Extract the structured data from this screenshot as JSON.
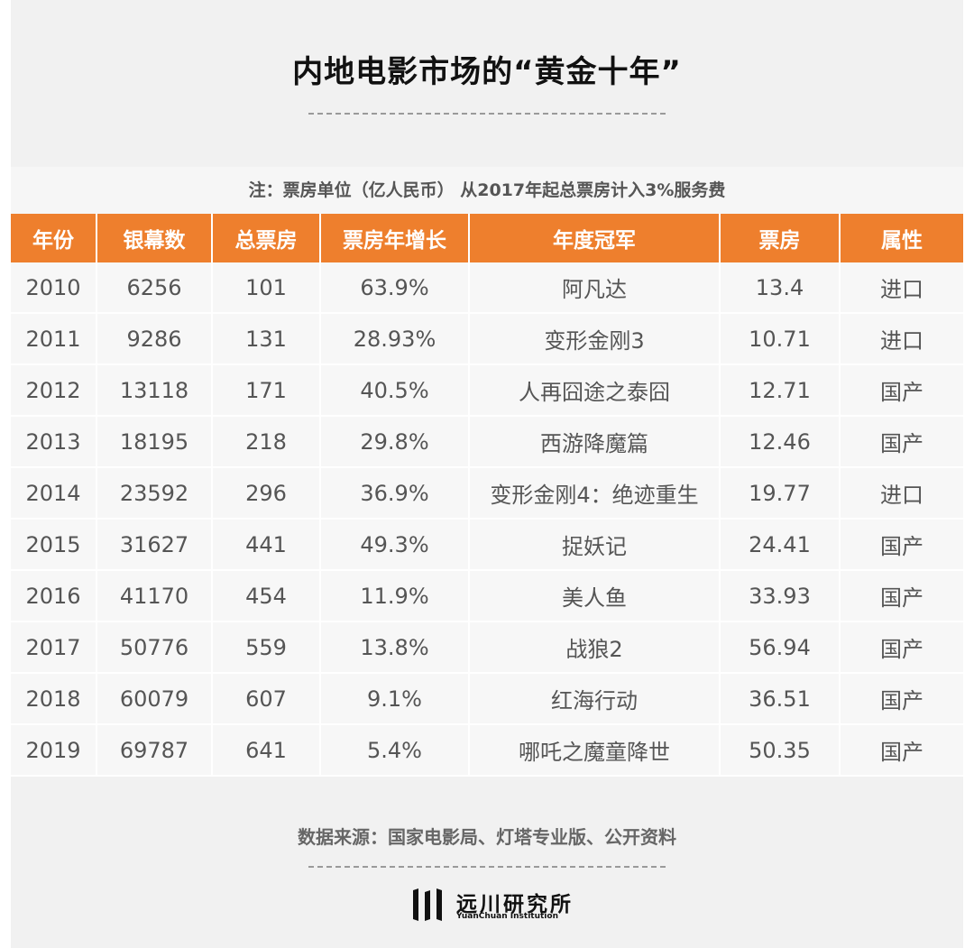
{
  "title": "内地电影市场的“黄金十年”",
  "note": "注：票房单位（亿人民币） 从2017年起总票房计入3%服务费",
  "table": {
    "headers": [
      "年份",
      "银幕数",
      "总票房",
      "票房年增长",
      "年度冠军",
      "票房",
      "属性"
    ],
    "rows": [
      [
        "2010",
        "6256",
        "101",
        "63.9%",
        "阿凡达",
        "13.4",
        "进口"
      ],
      [
        "2011",
        "9286",
        "131",
        "28.93%",
        "变形金刚3",
        "10.71",
        "进口"
      ],
      [
        "2012",
        "13118",
        "171",
        "40.5%",
        "人再囧途之泰囧",
        "12.71",
        "国产"
      ],
      [
        "2013",
        "18195",
        "218",
        "29.8%",
        "西游降魔篇",
        "12.46",
        "国产"
      ],
      [
        "2014",
        "23592",
        "296",
        "36.9%",
        "变形金刚4：绝迹重生",
        "19.77",
        "进口"
      ],
      [
        "2015",
        "31627",
        "441",
        "49.3%",
        "捉妖记",
        "24.41",
        "国产"
      ],
      [
        "2016",
        "41170",
        "454",
        "11.9%",
        "美人鱼",
        "33.93",
        "国产"
      ],
      [
        "2017",
        "50776",
        "559",
        "13.8%",
        "战狼2",
        "56.94",
        "国产"
      ],
      [
        "2018",
        "60079",
        "607",
        "9.1%",
        "红海行动",
        "36.51",
        "国产"
      ],
      [
        "2019",
        "69787",
        "641",
        "5.4%",
        "哪吒之魔童降世",
        "50.35",
        "国产"
      ]
    ]
  },
  "source": "数据来源：国家电影局、灯塔专业版、公开资料",
  "logo": {
    "name_cn": "远川研究所",
    "name_en": "YuanChuan Institution"
  },
  "colors": {
    "header_bg": "#ee7f2d",
    "panel_bg": "#f1f1f1"
  }
}
